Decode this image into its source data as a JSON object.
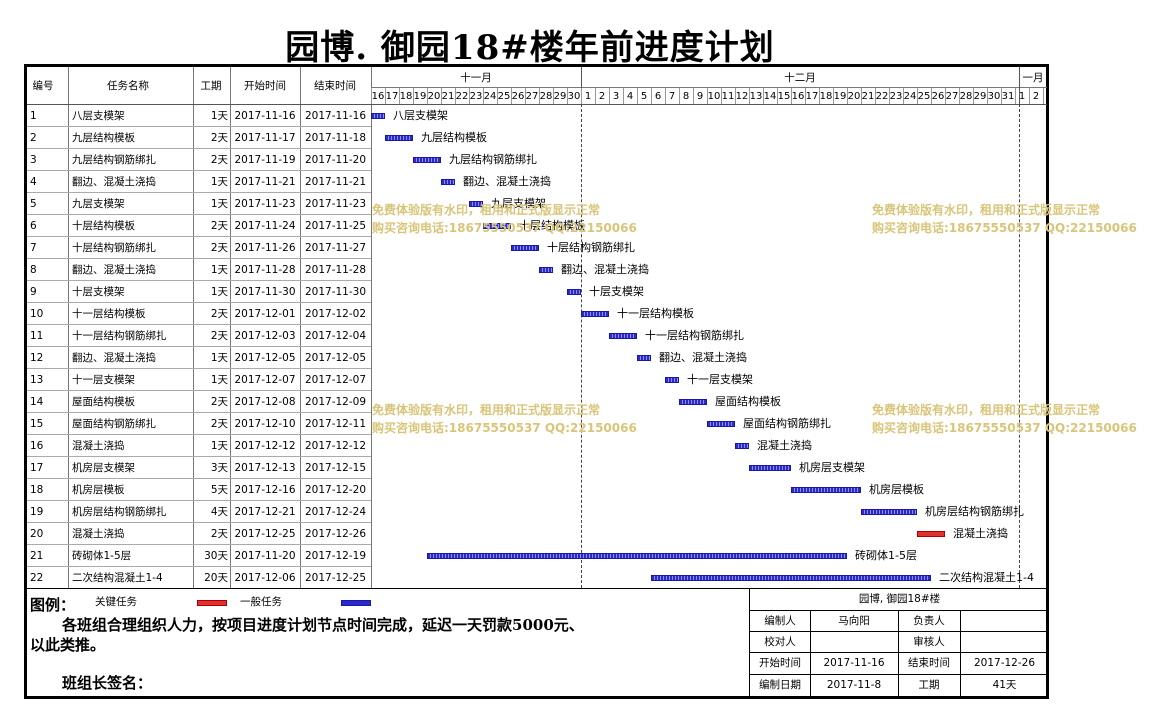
{
  "title": "园博. 御园18#楼年前进度计划",
  "headers": {
    "no": "编号",
    "task": "任务名称",
    "dur": "工期",
    "start": "开始时间",
    "end": "结束时间"
  },
  "months": [
    "十一月",
    "十二月",
    "一月"
  ],
  "days": [
    "16",
    "17",
    "18",
    "19",
    "20",
    "21",
    "22",
    "23",
    "24",
    "25",
    "26",
    "27",
    "28",
    "29",
    "30",
    "1",
    "2",
    "3",
    "4",
    "5",
    "6",
    "7",
    "8",
    "9",
    "10",
    "11",
    "12",
    "13",
    "14",
    "15",
    "16",
    "17",
    "18",
    "19",
    "20",
    "21",
    "22",
    "23",
    "24",
    "25",
    "26",
    "27",
    "28",
    "29",
    "30",
    "31",
    "1",
    "2"
  ],
  "tasks": [
    {
      "no": "1",
      "name": "八层支模架",
      "dur": "1天",
      "start": "2017-11-16",
      "end": "2017-11-16"
    },
    {
      "no": "2",
      "name": "九层结构模板",
      "dur": "2天",
      "start": "2017-11-17",
      "end": "2017-11-18"
    },
    {
      "no": "3",
      "name": "九层结构钢筋绑扎",
      "dur": "2天",
      "start": "2017-11-19",
      "end": "2017-11-20"
    },
    {
      "no": "4",
      "name": "翻边、混凝土浇捣",
      "dur": "1天",
      "start": "2017-11-21",
      "end": "2017-11-21"
    },
    {
      "no": "5",
      "name": "九层支模架",
      "dur": "1天",
      "start": "2017-11-23",
      "end": "2017-11-23"
    },
    {
      "no": "6",
      "name": "十层结构模板",
      "dur": "2天",
      "start": "2017-11-24",
      "end": "2017-11-25"
    },
    {
      "no": "7",
      "name": "十层结构钢筋绑扎",
      "dur": "2天",
      "start": "2017-11-26",
      "end": "2017-11-27"
    },
    {
      "no": "8",
      "name": "翻边、混凝土浇捣",
      "dur": "1天",
      "start": "2017-11-28",
      "end": "2017-11-28"
    },
    {
      "no": "9",
      "name": "十层支模架",
      "dur": "1天",
      "start": "2017-11-30",
      "end": "2017-11-30"
    },
    {
      "no": "10",
      "name": "十一层结构模板",
      "dur": "2天",
      "start": "2017-12-01",
      "end": "2017-12-02"
    },
    {
      "no": "11",
      "name": "十一层结构钢筋绑扎",
      "dur": "2天",
      "start": "2017-12-03",
      "end": "2017-12-04"
    },
    {
      "no": "12",
      "name": "翻边、混凝土浇捣",
      "dur": "1天",
      "start": "2017-12-05",
      "end": "2017-12-05"
    },
    {
      "no": "13",
      "name": "十一层支模架",
      "dur": "1天",
      "start": "2017-12-07",
      "end": "2017-12-07"
    },
    {
      "no": "14",
      "name": "屋面结构模板",
      "dur": "2天",
      "start": "2017-12-08",
      "end": "2017-12-09"
    },
    {
      "no": "15",
      "name": "屋面结构钢筋绑扎",
      "dur": "2天",
      "start": "2017-12-10",
      "end": "2017-12-11"
    },
    {
      "no": "16",
      "name": "混凝土浇捣",
      "dur": "1天",
      "start": "2017-12-12",
      "end": "2017-12-12"
    },
    {
      "no": "17",
      "name": "机房层支模架",
      "dur": "3天",
      "start": "2017-12-13",
      "end": "2017-12-15"
    },
    {
      "no": "18",
      "name": "机房层模板",
      "dur": "5天",
      "start": "2017-12-16",
      "end": "2017-12-20"
    },
    {
      "no": "19",
      "name": "机房层结构钢筋绑扎",
      "dur": "4天",
      "start": "2017-12-21",
      "end": "2017-12-24"
    },
    {
      "no": "20",
      "name": "混凝土浇捣",
      "dur": "2天",
      "start": "2017-12-25",
      "end": "2017-12-26"
    },
    {
      "no": "21",
      "name": "砖砌体1-5层",
      "dur": "30天",
      "start": "2017-11-20",
      "end": "2017-12-19"
    },
    {
      "no": "22",
      "name": "二次结构混凝土1-4",
      "dur": "20天",
      "start": "2017-12-06",
      "end": "2017-12-25"
    }
  ],
  "bars": [
    {
      "startDay": 0,
      "days": 1,
      "label": "八层支模架",
      "critical": false
    },
    {
      "startDay": 1,
      "days": 2,
      "label": "九层结构模板",
      "critical": false
    },
    {
      "startDay": 3,
      "days": 2,
      "label": "九层结构钢筋绑扎",
      "critical": false
    },
    {
      "startDay": 5,
      "days": 1,
      "label": "翻边、混凝土浇捣",
      "critical": false
    },
    {
      "startDay": 7,
      "days": 1,
      "label": "九层支模架",
      "critical": false
    },
    {
      "startDay": 8,
      "days": 2,
      "label": "十层结构模板",
      "critical": false
    },
    {
      "startDay": 10,
      "days": 2,
      "label": "十层结构钢筋绑扎",
      "critical": false
    },
    {
      "startDay": 12,
      "days": 1,
      "label": "翻边、混凝土浇捣",
      "critical": false
    },
    {
      "startDay": 14,
      "days": 1,
      "label": "十层支模架",
      "critical": false
    },
    {
      "startDay": 15,
      "days": 2,
      "label": "十一层结构模板",
      "critical": false
    },
    {
      "startDay": 17,
      "days": 2,
      "label": "十一层结构钢筋绑扎",
      "critical": false
    },
    {
      "startDay": 19,
      "days": 1,
      "label": "翻边、混凝土浇捣",
      "critical": false
    },
    {
      "startDay": 21,
      "days": 1,
      "label": "十一层支模架",
      "critical": false
    },
    {
      "startDay": 22,
      "days": 2,
      "label": "屋面结构模板",
      "critical": false
    },
    {
      "startDay": 24,
      "days": 2,
      "label": "屋面结构钢筋绑扎",
      "critical": false
    },
    {
      "startDay": 26,
      "days": 1,
      "label": "混凝土浇捣",
      "critical": false
    },
    {
      "startDay": 27,
      "days": 3,
      "label": "机房层支模架",
      "critical": false
    },
    {
      "startDay": 30,
      "days": 5,
      "label": "机房层模板",
      "critical": false
    },
    {
      "startDay": 35,
      "days": 4,
      "label": "机房层结构钢筋绑扎",
      "critical": false
    },
    {
      "startDay": 39,
      "days": 2,
      "label": "混凝土浇捣",
      "critical": true
    },
    {
      "startDay": 4,
      "days": 30,
      "label": "砖砌体1-5层",
      "critical": false
    },
    {
      "startDay": 20,
      "days": 20,
      "label": "二次结构混凝土1-4",
      "critical": false
    }
  ],
  "watermark": {
    "line1": "免费体验版有水印，租用和正式版显示正常",
    "line2": "购买咨询电话:18675550537 QQ:22150066"
  },
  "legend": {
    "label": "图例：",
    "critical": "关键任务",
    "normal": "一般任务",
    "critical_color": "#e03030",
    "normal_color": "#2a2ad0"
  },
  "note": "各班组合理组织人力，按项目进度计划节点时间完成，延迟一天罚款5000元、以此类推。",
  "note_line1": "各班组合理组织人力，按项目进度计划节点时间完成，延迟一天罚款5000元、",
  "note_line2": "以此类推。",
  "sign": "班组长签名：",
  "info": {
    "project": "园博, 御园18#楼",
    "author_label": "编制人",
    "author": "马向阳",
    "owner_label": "负责人",
    "owner": "",
    "checker_label": "校对人",
    "checker": "",
    "reviewer_label": "审核人",
    "reviewer": "",
    "start_label": "开始时间",
    "start": "2017-11-16",
    "end_label": "结束时间",
    "end": "2017-12-26",
    "date_label": "编制日期",
    "date": "2017-11-8",
    "dur_label": "工期",
    "dur": "41天"
  }
}
